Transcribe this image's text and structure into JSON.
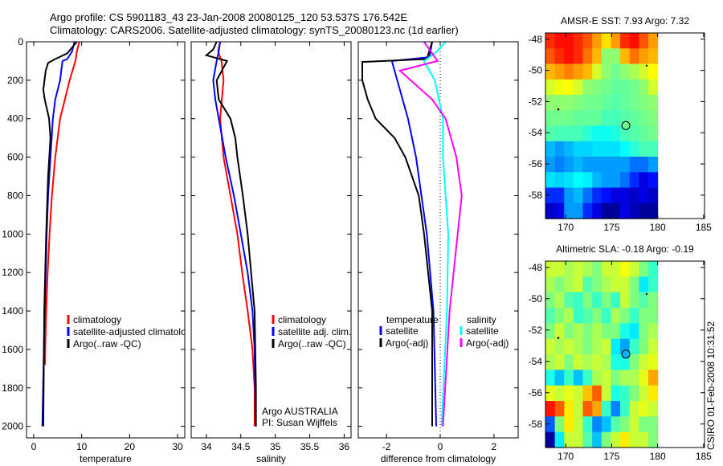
{
  "title_line1": "Argo profile: CS 5901183_43 23-Jan-2008 20080125_120 53.537S 176.542E",
  "title_line2": "Climatology: CARS2006. Satellite-adjusted climatology: synTS_20080123.nc (1d earlier)",
  "credit": "CSIRO 01-Feb-2008 10:31:52",
  "colors": {
    "red": "#ff0000",
    "blue": "#0000ff",
    "black": "#000000",
    "cyan": "#00ffff",
    "magenta": "#ff00ff"
  },
  "chart_data": [
    {
      "type": "line",
      "id": "temp",
      "xlabel": "temperature",
      "ylabel": "",
      "xlim": [
        -1.5,
        31.5
      ],
      "ylim": [
        0,
        2060
      ],
      "y_reversed": true,
      "xticks": [
        0,
        10,
        20,
        30
      ],
      "xtick_labels": [
        "0",
        "10",
        "20",
        "30"
      ],
      "yticks": [
        0,
        200,
        400,
        600,
        800,
        1000,
        1200,
        1400,
        1600,
        1800,
        2000
      ],
      "ytick_labels": [
        "0",
        "200",
        "400",
        "600",
        "800",
        "1000",
        "1200",
        "1400",
        "1600",
        "1800",
        "2000"
      ],
      "legend": [
        "climatology",
        "satellite-adjusted climatology",
        "Argo(..raw -QC)"
      ],
      "series": [
        {
          "name": "climatology",
          "color": "red",
          "depth": [
            0,
            50,
            100,
            200,
            300,
            400,
            600,
            800,
            1000,
            1200,
            1400,
            1600,
            1680
          ],
          "values": [
            9.5,
            9,
            8.7,
            7.5,
            6.5,
            5.5,
            4.5,
            3.8,
            3.3,
            2.9,
            2.6,
            2.4,
            2.35
          ]
        },
        {
          "name": "satellite-adjusted climatology",
          "color": "blue",
          "depth": [
            0,
            50,
            90,
            100,
            200,
            300,
            400,
            600,
            800,
            1000,
            1500,
            2000
          ],
          "values": [
            8.5,
            8,
            7,
            6,
            5.5,
            4.5,
            4,
            3.5,
            3,
            2.7,
            2.2,
            1.8
          ]
        },
        {
          "name": "Argo(..raw -QC)",
          "color": "black",
          "depth": [
            0,
            60,
            90,
            110,
            150,
            250,
            300,
            400,
            500,
            700,
            1000,
            1400,
            2000
          ],
          "values": [
            9,
            7,
            4.5,
            3,
            2.5,
            2,
            2.3,
            3.2,
            3.5,
            3,
            2.6,
            2.2,
            2
          ]
        }
      ]
    },
    {
      "type": "line",
      "id": "sal",
      "xlabel": "salinity",
      "xlim": [
        33.78,
        36.1
      ],
      "ylim": [
        0,
        2060
      ],
      "y_reversed": true,
      "xticks": [
        34,
        34.5,
        35,
        35.5,
        36
      ],
      "xtick_labels": [
        "34",
        "34.5",
        "35",
        "35.5",
        "36"
      ],
      "yticks": [
        0,
        200,
        400,
        600,
        800,
        1000,
        1200,
        1400,
        1600,
        1800,
        2000
      ],
      "legend": [
        "climatology",
        "satellite adj. clim.",
        "Argo(..raw -QC)"
      ],
      "annotation": [
        "Argo AUSTRALIA",
        "PI: Susan Wijffels"
      ],
      "series": [
        {
          "name": "climatology",
          "color": "red",
          "depth": [
            0,
            50,
            100,
            200,
            400,
            600,
            800,
            1000,
            1200,
            1400,
            1600,
            1800,
            2000
          ],
          "values": [
            34.2,
            34.17,
            34.22,
            34.25,
            34.2,
            34.25,
            34.35,
            34.45,
            34.52,
            34.6,
            34.67,
            34.7,
            34.7
          ]
        },
        {
          "name": "satellite adj. clim.",
          "color": "blue",
          "depth": [
            0,
            50,
            100,
            200,
            300,
            400,
            600,
            800,
            1000,
            1200,
            1400,
            1600,
            2000
          ],
          "values": [
            34.2,
            34.18,
            34.15,
            34.1,
            34.13,
            34.18,
            34.28,
            34.4,
            34.5,
            34.6,
            34.67,
            34.7,
            34.72
          ]
        },
        {
          "name": "Argo(..raw -QC)",
          "color": "black",
          "depth": [
            0,
            40,
            70,
            100,
            200,
            300,
            400,
            500,
            600,
            800,
            1000,
            1200,
            1400,
            1800,
            2000
          ],
          "values": [
            34.15,
            34.1,
            34.0,
            34.3,
            34.15,
            34.18,
            34.35,
            34.42,
            34.45,
            34.53,
            34.6,
            34.65,
            34.7,
            34.72,
            34.72
          ]
        }
      ]
    },
    {
      "type": "line",
      "id": "diff",
      "xlabel": "difference from climatology",
      "xlim": [
        -3.05,
        2.9
      ],
      "ylim": [
        0,
        2060
      ],
      "y_reversed": true,
      "xticks": [
        -2,
        0,
        2
      ],
      "xtick_labels": [
        "-2",
        "0",
        "2"
      ],
      "yticks": [
        0,
        200,
        400,
        600,
        800,
        1000,
        1200,
        1400,
        1600,
        1800,
        2000
      ],
      "legend_temperature": {
        "heading": "temperature",
        "items": [
          "satellite",
          "Argo(-adj)"
        ]
      },
      "legend_salinity": {
        "heading": "salinity",
        "items": [
          "satellite",
          "Argo(-adj)"
        ]
      },
      "series": [
        {
          "name": "temperature satellite",
          "color": "blue",
          "depth": [
            0,
            80,
            100,
            200,
            400,
            600,
            800,
            1000,
            1400,
            2000
          ],
          "values": [
            -0.3,
            -0.4,
            -1.8,
            -1.6,
            -1.2,
            -0.9,
            -0.7,
            -0.5,
            -0.25,
            -0.15
          ]
        },
        {
          "name": "temperature Argo(-adj)",
          "color": "black",
          "depth": [
            0,
            90,
            105,
            200,
            300,
            400,
            500,
            600,
            800,
            1000,
            1400,
            2000
          ],
          "values": [
            -0.3,
            -0.5,
            -2.9,
            -2.9,
            -2.7,
            -2.4,
            -1.7,
            -1.3,
            -0.8,
            -0.6,
            -0.3,
            -0.3
          ]
        },
        {
          "name": "salinity satellite",
          "color": "cyan",
          "depth": [
            0,
            60,
            100,
            200,
            400,
            600,
            800,
            1000,
            1400,
            2000
          ],
          "values": [
            0.2,
            -0.2,
            -0.6,
            -0.2,
            0.1,
            0.1,
            0.2,
            0.3,
            0.25,
            0.05
          ]
        },
        {
          "name": "salinity Argo(-adj)",
          "color": "magenta",
          "depth": [
            0,
            60,
            100,
            150,
            200,
            300,
            400,
            600,
            800,
            1000,
            1400,
            2000
          ],
          "values": [
            -0.6,
            -0.3,
            -0.1,
            -1.5,
            -1.1,
            -0.3,
            0.2,
            0.6,
            0.8,
            0.65,
            0.35,
            0.1
          ]
        }
      ]
    },
    {
      "type": "heatmap",
      "id": "sst",
      "title": "AMSR-E SST: 7.93 Argo: 7.32",
      "xlim": [
        167.8,
        185.1
      ],
      "ylim": [
        -59.5,
        -47.6
      ],
      "xticks": [
        170,
        175,
        180,
        185
      ],
      "xtick_labels": [
        "170",
        "175",
        "180",
        "185"
      ],
      "yticks": [
        -48,
        -50,
        -52,
        -54,
        -56,
        -58
      ],
      "ytick_labels": [
        "-48",
        "-50",
        "-52",
        "-54",
        "-56",
        "-58"
      ],
      "lon_range": [
        167.8,
        180
      ],
      "lat_range": [
        -47.6,
        -59.5
      ],
      "clim": [
        3.8,
        11
      ],
      "grid": [
        [
          9.8,
          10,
          10,
          9.8,
          9.5,
          9,
          8.5,
          9,
          9.8,
          10,
          9.5,
          9
        ],
        [
          9.5,
          9.8,
          10,
          9.8,
          9.3,
          8.8,
          7.5,
          7.5,
          8.8,
          9.3,
          9,
          8.8
        ],
        [
          8.8,
          9,
          9.2,
          9,
          8.8,
          8,
          7.5,
          7.3,
          7.5,
          7.7,
          8,
          8.3
        ],
        [
          8,
          8.2,
          8.3,
          8,
          7.5,
          7.4,
          7.3,
          7.2,
          7.2,
          7.3,
          7.5,
          8
        ],
        [
          7.5,
          7.5,
          7.5,
          7.4,
          7.3,
          7.3,
          7.2,
          7.1,
          7.2,
          7.3,
          7.4,
          7.5
        ],
        [
          7.3,
          7.3,
          7.3,
          7.2,
          7.2,
          7.2,
          7,
          7,
          7.1,
          7.2,
          7.3,
          7.4
        ],
        [
          7.1,
          7,
          7,
          7,
          6.8,
          6.6,
          6.6,
          6.7,
          7,
          7.1,
          7.2,
          7.3
        ],
        [
          6,
          5.8,
          6,
          6.2,
          6.2,
          6.3,
          6.3,
          6.3,
          6.5,
          6.8,
          7,
          7
        ],
        [
          5.8,
          5.6,
          5.8,
          6,
          5.8,
          5.8,
          5.8,
          5.8,
          5.8,
          5.5,
          5.5,
          5.8
        ],
        [
          6.3,
          6.2,
          6.3,
          6.5,
          6.4,
          6,
          5.8,
          5.8,
          5.5,
          5,
          4.5,
          4.8
        ],
        [
          5,
          5,
          5.8,
          6,
          5.5,
          5,
          4.8,
          4.5,
          4.5,
          4.3,
          4.5,
          4.3
        ],
        [
          4.3,
          4.5,
          5.8,
          5.8,
          5,
          4.5,
          4,
          4,
          4.5,
          4.2,
          4,
          4
        ]
      ],
      "argo_position": [
        176.542,
        -53.537
      ],
      "argo_value": 7.32
    },
    {
      "type": "heatmap",
      "id": "sla",
      "title": "Altimetric SLA: -0.18 Argo: -0.19",
      "xlim": [
        167.8,
        185.1
      ],
      "ylim": [
        -59.5,
        -47.6
      ],
      "xticks": [
        170,
        175,
        180,
        185
      ],
      "xtick_labels": [
        "170",
        "175",
        "180",
        "185"
      ],
      "yticks": [
        -48,
        -50,
        -52,
        -54,
        -56,
        -58
      ],
      "ytick_labels": [
        "-48",
        "-50",
        "-52",
        "-54",
        "-56",
        "-58"
      ],
      "lon_range": [
        167.8,
        180
      ],
      "lat_range": [
        -47.6,
        -59.5
      ],
      "clim": [
        -0.4,
        0.3
      ],
      "grid": [
        [
          0,
          0,
          -0.02,
          0,
          -0.02,
          -0.05,
          0,
          0,
          0.03,
          0,
          -0.05,
          -0.1
        ],
        [
          -0.02,
          -0.05,
          -0.02,
          0,
          -0.08,
          -0.05,
          -0.02,
          0,
          0,
          -0.05,
          -0.15,
          -0.1
        ],
        [
          -0.05,
          -0.02,
          -0.08,
          -0.1,
          -0.05,
          -0.1,
          -0.05,
          -0.1,
          0,
          -0.05,
          -0.08,
          -0.05
        ],
        [
          -0.08,
          -0.05,
          -0.02,
          -0.1,
          -0.08,
          -0.05,
          -0.1,
          -0.02,
          -0.05,
          -0.1,
          -0.05,
          -0.05
        ],
        [
          -0.05,
          0,
          -0.05,
          -0.02,
          -0.05,
          -0.02,
          -0.05,
          -0.05,
          -0.12,
          -0.15,
          -0.05,
          -0.02
        ],
        [
          0,
          -0.02,
          0,
          -0.02,
          -0.05,
          -0.02,
          0,
          -0.15,
          -0.2,
          -0.1,
          -0.05,
          0
        ],
        [
          -0.02,
          0,
          -0.05,
          0,
          -0.02,
          0,
          -0.02,
          -0.12,
          -0.12,
          -0.05,
          0,
          0.02
        ],
        [
          -0.12,
          -0.18,
          -0.1,
          -0.18,
          -0.1,
          -0.02,
          0,
          -0.05,
          -0.02,
          -0.02,
          0.02,
          0.1
        ],
        [
          0.02,
          0,
          0.02,
          0,
          0.08,
          0.15,
          0,
          -0.12,
          -0.1,
          -0.05,
          0,
          0.05
        ],
        [
          0.2,
          0.15,
          0.05,
          0,
          0.15,
          0.1,
          -0.1,
          -0.22,
          -0.1,
          0,
          0.02,
          0
        ],
        [
          -0.25,
          -0.05,
          0.05,
          0,
          -0.1,
          -0.22,
          -0.18,
          -0.08,
          -0.05,
          0,
          -0.05,
          -0.05
        ],
        [
          -0.38,
          -0.15,
          0,
          0,
          -0.08,
          -0.18,
          -0.05,
          0,
          0.05,
          0,
          0,
          -0.05
        ]
      ],
      "argo_position": [
        176.542,
        -53.537
      ],
      "argo_value": -0.19
    }
  ]
}
